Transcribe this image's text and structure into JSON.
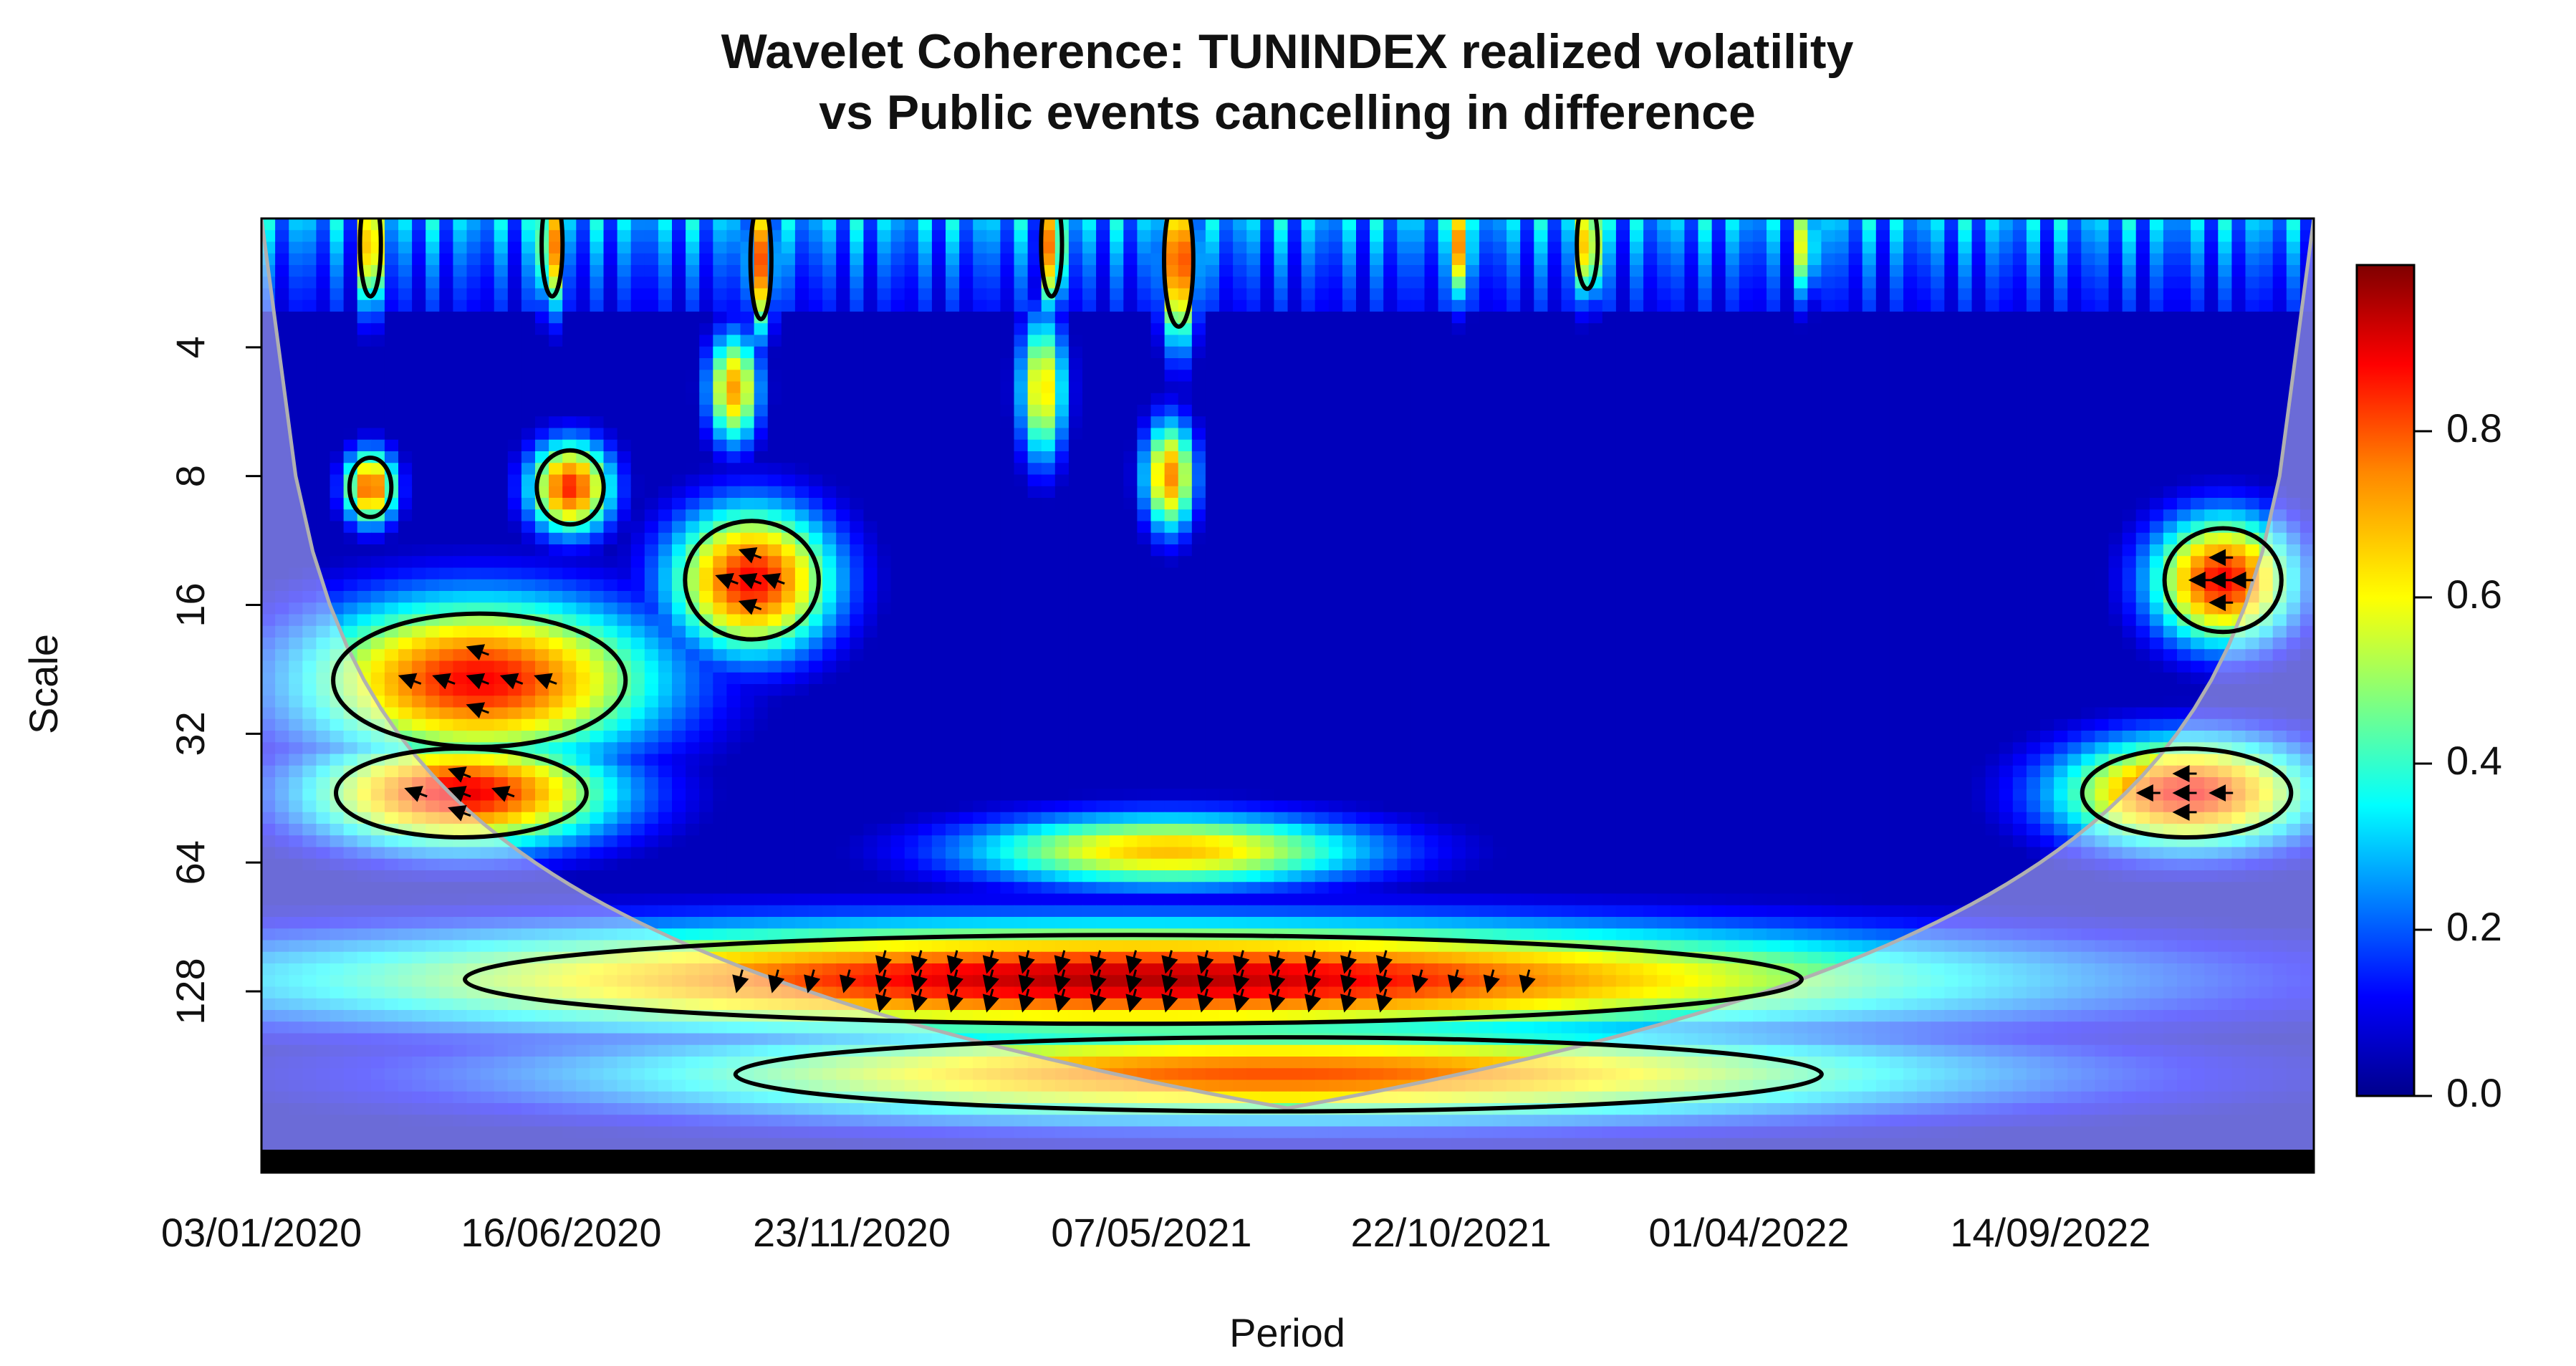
{
  "chart_data": {
    "type": "heatmap",
    "title": "Wavelet Coherence: TUNINDEX realized volatility",
    "subtitle": "vs Public events cancelling in difference",
    "xlabel": "Period",
    "ylabel": "Scale",
    "x_tick_labels": [
      "03/01/2020",
      "16/06/2020",
      "23/11/2020",
      "07/05/2021",
      "22/10/2021",
      "01/04/2022",
      "14/09/2022"
    ],
    "x_tick_days": [
      0,
      165,
      325,
      490,
      655,
      819,
      985
    ],
    "x_range_days": [
      0,
      1130
    ],
    "y_scale": "log2",
    "y_ticks": [
      4,
      8,
      16,
      32,
      64,
      128
    ],
    "y_range": [
      2,
      300
    ],
    "colorbar": {
      "range": [
        0,
        1
      ],
      "ticks": [
        "0.0",
        "0.2",
        "0.4",
        "0.6",
        "0.8"
      ],
      "tick_values": [
        0,
        0.2,
        0.4,
        0.6,
        0.8
      ]
    },
    "colors": {
      "low": "#00008b",
      "mid": "#00ffff",
      "midhigh": "#ffff00",
      "high": "#ff0000",
      "max": "#7f0000",
      "cone": "#b0b0b0",
      "contour": "#000000"
    },
    "coherence_blobs": [
      {
        "t": 120,
        "s": 24,
        "coh": 0.88,
        "wt": 70,
        "ws": 0.45
      },
      {
        "t": 110,
        "s": 44,
        "coh": 0.9,
        "wt": 60,
        "ws": 0.3
      },
      {
        "t": 270,
        "s": 14,
        "coh": 0.88,
        "wt": 32,
        "ws": 0.4
      },
      {
        "t": 170,
        "s": 8.5,
        "coh": 0.85,
        "wt": 16,
        "ws": 0.25
      },
      {
        "t": 60,
        "s": 8.5,
        "coh": 0.82,
        "wt": 10,
        "ws": 0.2
      },
      {
        "t": 500,
        "s": 8,
        "coh": 0.75,
        "wt": 10,
        "ws": 0.3
      },
      {
        "t": 260,
        "s": 5,
        "coh": 0.72,
        "wt": 10,
        "ws": 0.3
      },
      {
        "t": 430,
        "s": 5,
        "coh": 0.65,
        "wt": 9,
        "ws": 0.4
      },
      {
        "t": 500,
        "s": 60,
        "coh": 0.68,
        "wt": 80,
        "ws": 0.2
      },
      {
        "t": 480,
        "s": 120,
        "coh": 0.95,
        "wt": 320,
        "ws": 0.3
      },
      {
        "t": 1080,
        "s": 14,
        "coh": 0.88,
        "wt": 28,
        "ws": 0.35
      },
      {
        "t": 1060,
        "s": 44,
        "coh": 0.88,
        "wt": 50,
        "ws": 0.3
      },
      {
        "t": 560,
        "s": 200,
        "coh": 0.8,
        "wt": 260,
        "ws": 0.25
      },
      {
        "t": 60,
        "s": 2.3,
        "coh": 0.85,
        "wt": 5,
        "ws": 0.35
      },
      {
        "t": 160,
        "s": 2.3,
        "coh": 0.82,
        "wt": 5,
        "ws": 0.35
      },
      {
        "t": 275,
        "s": 2.5,
        "coh": 0.8,
        "wt": 5,
        "ws": 0.4
      },
      {
        "t": 435,
        "s": 2.3,
        "coh": 0.82,
        "wt": 5,
        "ws": 0.35
      },
      {
        "t": 505,
        "s": 2.5,
        "coh": 0.9,
        "wt": 7,
        "ws": 0.45
      },
      {
        "t": 660,
        "s": 2.3,
        "coh": 0.75,
        "wt": 5,
        "ws": 0.3
      },
      {
        "t": 730,
        "s": 2.3,
        "coh": 0.8,
        "wt": 5,
        "ws": 0.3
      },
      {
        "t": 850,
        "s": 2.3,
        "coh": 0.7,
        "wt": 4,
        "ws": 0.3
      }
    ]
  }
}
